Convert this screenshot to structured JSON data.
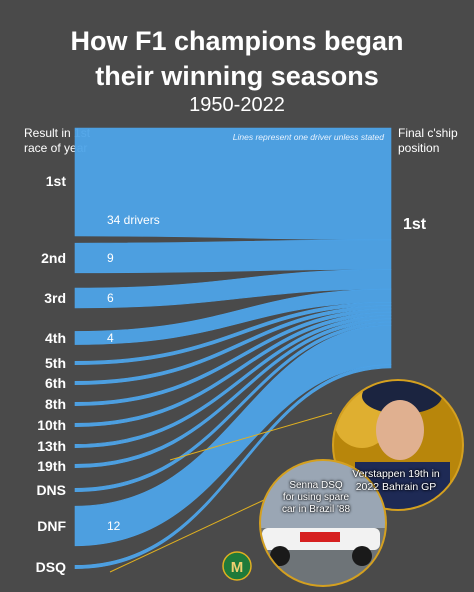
{
  "header": {
    "title_line1": "How F1 champions began",
    "title_line2": "their winning seasons",
    "subtitle": "1950-2022"
  },
  "axes": {
    "left_line1": "Result in 1st",
    "left_line2": "race of year",
    "right_line1": "Final c'ship",
    "right_line2": "position"
  },
  "note": "Lines represent one driver unless stated",
  "annotations": {
    "verstappen_line1": "Verstappen 19th in",
    "verstappen_line2": "2022 Bahrain GP",
    "senna_line1": "Senna DSQ",
    "senna_line2": "for using spare",
    "senna_line3": "car in Brazil '88"
  },
  "chart_data": {
    "type": "sankey",
    "target": "1st",
    "sources": [
      {
        "label": "1st",
        "count": 34,
        "count_label": "34 drivers"
      },
      {
        "label": "2nd",
        "count": 9,
        "count_label": "9"
      },
      {
        "label": "3rd",
        "count": 6,
        "count_label": "6"
      },
      {
        "label": "4th",
        "count": 4,
        "count_label": "4"
      },
      {
        "label": "5th",
        "count": 1,
        "count_label": ""
      },
      {
        "label": "6th",
        "count": 1,
        "count_label": ""
      },
      {
        "label": "8th",
        "count": 1,
        "count_label": ""
      },
      {
        "label": "10th",
        "count": 1,
        "count_label": ""
      },
      {
        "label": "13th",
        "count": 1,
        "count_label": ""
      },
      {
        "label": "19th",
        "count": 1,
        "count_label": ""
      },
      {
        "label": "DNS",
        "count": 1,
        "count_label": ""
      },
      {
        "label": "DNF",
        "count": 12,
        "count_label": "12"
      },
      {
        "label": "DSQ",
        "count": 1,
        "count_label": ""
      }
    ],
    "colors": {
      "flow": "#4da3e8",
      "background": "#4a4a4a"
    }
  }
}
